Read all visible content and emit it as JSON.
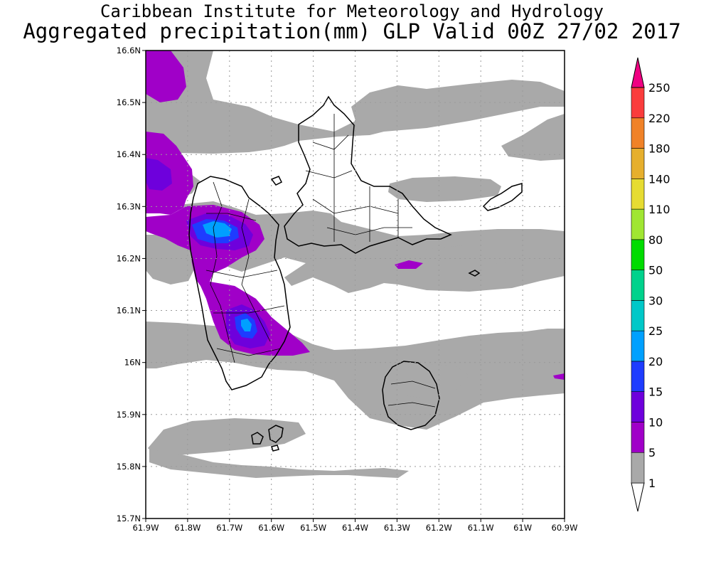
{
  "title": {
    "line1": "Caribbean Institute for Meteorology and Hydrology",
    "line2": "Aggregated precipitation(mm) GLP Valid 00Z 27/02 2017"
  },
  "axes": {
    "lon_labels": [
      "61.9W",
      "61.8W",
      "61.7W",
      "61.6W",
      "61.5W",
      "61.4W",
      "61.3W",
      "61.2W",
      "61.1W",
      "61W",
      "60.9W"
    ],
    "lat_labels": [
      "16.6N",
      "16.5N",
      "16.4N",
      "16.3N",
      "16.2N",
      "16.1N",
      "16N",
      "15.9N",
      "15.8N",
      "15.7N"
    ],
    "lon_range": [
      -61.9,
      -60.9
    ],
    "lat_range": [
      15.7,
      16.6
    ],
    "grid": true
  },
  "legend": {
    "unit": "mm",
    "levels": [
      "1",
      "5",
      "10",
      "15",
      "20",
      "25",
      "30",
      "50",
      "80",
      "110",
      "140",
      "180",
      "220",
      "250"
    ],
    "colors": [
      "#a9a9a9",
      "#a000c8",
      "#6e00dc",
      "#1e3cff",
      "#00a0ff",
      "#00c8c8",
      "#00d28c",
      "#00dc00",
      "#a0e632",
      "#e6dc32",
      "#e6af2d",
      "#f08228",
      "#fa3c3c",
      "#f00082"
    ],
    "under_color": "#ffffff",
    "over_color": "#f00082"
  },
  "colors": {
    "grey": "#a9a9a9",
    "purple": "#a000c8",
    "violet": "#6e00dc",
    "blue": "#1e3cff",
    "cyan": "#00a0ff"
  }
}
